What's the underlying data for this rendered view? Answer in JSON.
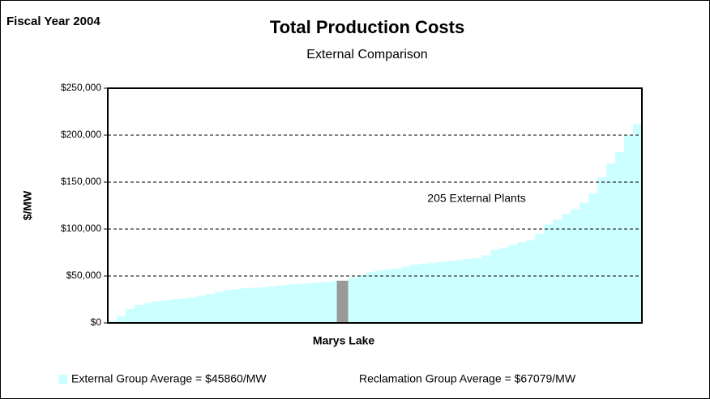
{
  "chart_data": {
    "type": "bar",
    "title": "Total Production Costs",
    "subtitle": "External Comparison",
    "corner_label": "Fiscal Year 2004",
    "y_label": "$/MW",
    "annotation": "205 External Plants",
    "color": "#ccffff",
    "highlight_color": "#999999",
    "grid": true,
    "ylim": [
      0,
      250000
    ],
    "yticks": [
      {
        "value": 0,
        "label": "$0"
      },
      {
        "value": 50000,
        "label": "$50,000"
      },
      {
        "value": 100000,
        "label": "$100,000"
      },
      {
        "value": 150000,
        "label": "$150,000"
      },
      {
        "value": 200000,
        "label": "$200,000"
      },
      {
        "value": 250000,
        "label": "$250,000"
      }
    ],
    "categories": [
      null,
      null,
      null,
      null,
      null,
      null,
      null,
      null,
      null,
      null,
      null,
      null,
      null,
      null,
      null,
      null,
      null,
      null,
      null,
      null,
      null,
      null,
      null,
      null,
      null,
      null,
      "Marys Lake",
      null,
      null,
      null,
      null,
      null,
      null,
      null,
      null,
      null,
      null,
      null,
      null,
      null,
      null,
      null,
      null,
      null,
      null,
      null,
      null,
      null,
      null,
      null,
      null,
      null,
      null,
      null,
      null,
      null,
      null,
      null,
      null,
      null
    ],
    "values": [
      2000,
      7000,
      15000,
      19000,
      21000,
      23000,
      24000,
      25000,
      26000,
      27000,
      29000,
      31000,
      33000,
      35000,
      36000,
      37000,
      37500,
      38000,
      39000,
      40000,
      41000,
      41500,
      42000,
      43000,
      43500,
      44500,
      45000,
      48000,
      51000,
      54000,
      56000,
      57000,
      58000,
      60000,
      62000,
      63000,
      64000,
      65000,
      66000,
      67000,
      68000,
      69000,
      72000,
      78000,
      80000,
      83000,
      86000,
      88000,
      95000,
      105000,
      110000,
      116000,
      121000,
      128000,
      138000,
      155000,
      170000,
      182000,
      200000,
      212000
    ],
    "legend": [
      "External Group Average = $45860/MW",
      "Reclamation Group Average = $67079/MW"
    ]
  }
}
